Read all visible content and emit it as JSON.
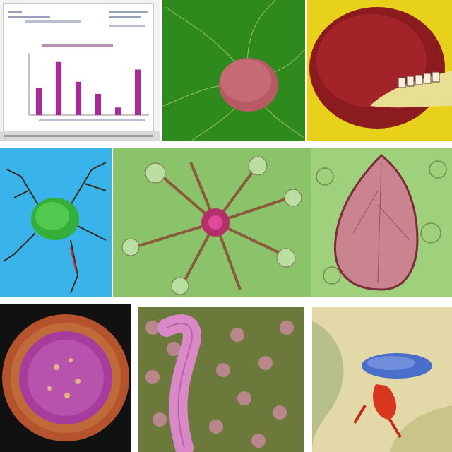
{
  "collage": {
    "tiles": [
      {
        "id": "tile-1",
        "subject": "bar-chart-screenshot"
      },
      {
        "id": "tile-2",
        "subject": "pink-cell-on-green"
      },
      {
        "id": "tile-3",
        "subject": "red-organ-with-teeth"
      },
      {
        "id": "tile-4",
        "subject": "green-neuron-on-blue"
      },
      {
        "id": "tile-5",
        "subject": "branching-cell-on-green"
      },
      {
        "id": "tile-6",
        "subject": "pink-tissue-section"
      },
      {
        "id": "tile-7",
        "subject": "purple-cell-with-cilia"
      },
      {
        "id": "tile-8",
        "subject": "pink-worm-on-tissue"
      },
      {
        "id": "tile-9",
        "subject": "blue-red-creature"
      }
    ]
  },
  "chart_data": {
    "type": "bar",
    "values": [
      18,
      35,
      22,
      14,
      5,
      30
    ],
    "ylim": [
      0,
      40
    ],
    "bar_color": "#b0279b"
  },
  "colors": {
    "tile2_bg": "#2f8a1e",
    "tile3_bg": "#e8d11a",
    "tile4_bg": "#38b4ea",
    "tile5_bg": "#8bc36a",
    "tile7_bg": "#111111"
  }
}
